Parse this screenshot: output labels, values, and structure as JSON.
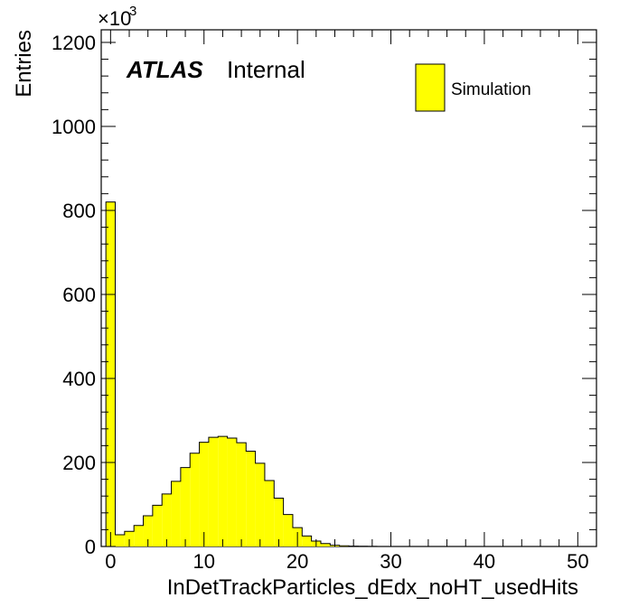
{
  "chart_data": {
    "type": "bar",
    "histogram": true,
    "xlabel": "InDetTrackParticles_dEdx_noHT_usedHits",
    "ylabel": "Entries",
    "y_multiplier": "×10",
    "y_multiplier_exp": "3",
    "xlim": [
      -1,
      52
    ],
    "ylim": [
      0,
      1230
    ],
    "bin_width": 1,
    "x_start": -0.5,
    "values": [
      820,
      28,
      36,
      50,
      73,
      98,
      125,
      155,
      188,
      222,
      248,
      260,
      262,
      258,
      247,
      227,
      198,
      157,
      115,
      76,
      45,
      25,
      13,
      7,
      3,
      1.5,
      0.8,
      0.4,
      0.2,
      0.1,
      0.05,
      0,
      0,
      0,
      0,
      0,
      0,
      0,
      0,
      0,
      0,
      0,
      0,
      0,
      0,
      0,
      0,
      0,
      0,
      0,
      0
    ],
    "x_ticks": [
      "0",
      "10",
      "20",
      "30",
      "40",
      "50"
    ],
    "y_ticks": [
      "0",
      "200",
      "400",
      "600",
      "800",
      "1000",
      "1200"
    ],
    "legend": [
      {
        "name": "Simulation",
        "color": "#ffff00"
      }
    ],
    "legend_position": "top-right",
    "fill_color": "#ffff00",
    "edge_color": "#000000",
    "grid": false
  },
  "atlas_label": {
    "experiment": "ATLAS",
    "status": "Internal"
  }
}
